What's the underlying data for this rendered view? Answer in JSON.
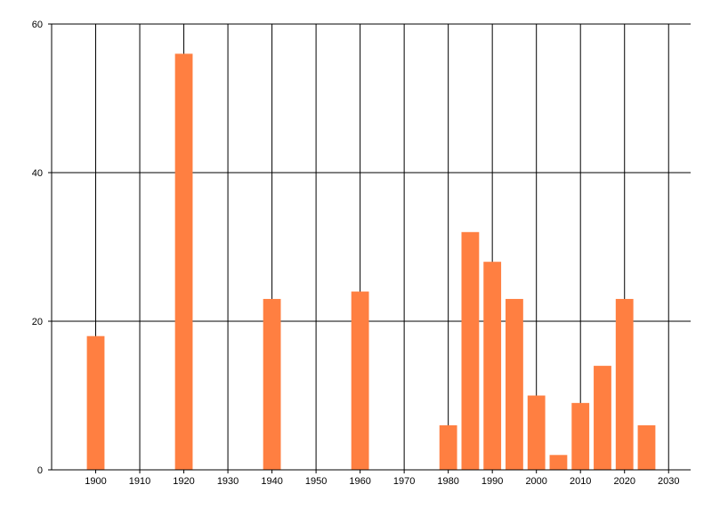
{
  "chart_data": {
    "type": "bar",
    "title": "",
    "xlabel": "",
    "ylabel": "",
    "x": [
      1900,
      1920,
      1940,
      1960,
      1980,
      1985,
      1990,
      1995,
      2000,
      2005,
      2010,
      2015,
      2020,
      2025
    ],
    "values": [
      18,
      56,
      23,
      24,
      6,
      32,
      28,
      23,
      10,
      2,
      9,
      14,
      23,
      6
    ],
    "xlim": [
      1890,
      2035
    ],
    "ylim": [
      0,
      60
    ],
    "x_ticks": [
      1900,
      1910,
      1920,
      1930,
      1940,
      1950,
      1960,
      1970,
      1980,
      1990,
      2000,
      2010,
      2020,
      2030
    ],
    "y_ticks": [
      0,
      20,
      40,
      60
    ],
    "grid": true,
    "bar_color": "#FF7F41",
    "grid_color": "#000000"
  }
}
